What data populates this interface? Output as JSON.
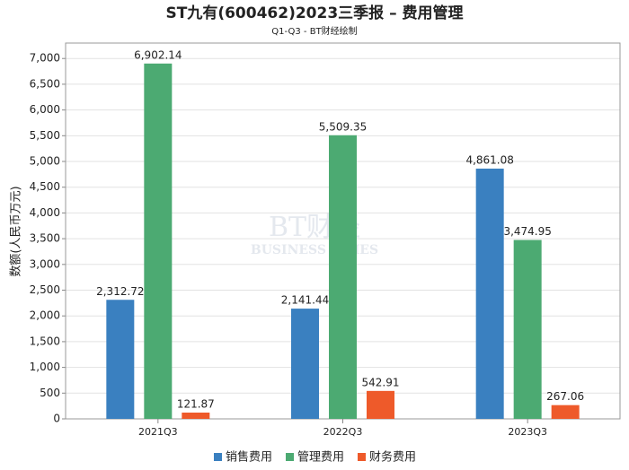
{
  "chart_data": {
    "type": "bar",
    "title": "ST九有(600462)2023三季报 – 费用管理",
    "subtitle": "Q1-Q3 - BT财经绘制",
    "y_label": "数额(人民币万元)",
    "watermark": [
      "BT财经",
      "BUSINESS TIMES"
    ],
    "categories": [
      "2021Q3",
      "2022Q3",
      "2023Q3"
    ],
    "series": [
      {
        "name": "销售费用",
        "color": "#3a80c0",
        "values": [
          2312.72,
          2141.44,
          4861.08
        ],
        "value_labels": [
          "2,312.72",
          "2,141.44",
          "4,861.08"
        ]
      },
      {
        "name": "管理费用",
        "color": "#4caa72",
        "values": [
          6902.14,
          5509.35,
          3474.95
        ],
        "value_labels": [
          "6,902.14",
          "5,509.35",
          "3,474.95"
        ]
      },
      {
        "name": "财务费用",
        "color": "#ee5a2a",
        "values": [
          121.87,
          542.91,
          267.06
        ],
        "value_labels": [
          "121.87",
          "542.91",
          "267.06"
        ]
      }
    ],
    "ylim": [
      0,
      7300
    ],
    "yticks": [
      0,
      500,
      {
        "value": 1000,
        "label": "1,000"
      },
      {
        "value": 1500,
        "label": "1,500"
      },
      {
        "value": 2000,
        "label": "2,000"
      },
      {
        "value": 2500,
        "label": "2,500"
      },
      {
        "value": 3000,
        "label": "3,000"
      },
      {
        "value": 3500,
        "label": "3,500"
      },
      {
        "value": 4000,
        "label": "4,000"
      },
      {
        "value": 4500,
        "label": "4,500"
      },
      {
        "value": 5000,
        "label": "5,000"
      },
      {
        "value": 5500,
        "label": "5,500"
      },
      {
        "value": 6000,
        "label": "6,000"
      },
      {
        "value": 6500,
        "label": "6,500"
      },
      {
        "value": 7000,
        "label": "7,000"
      }
    ],
    "grid": true,
    "legend": "bottom"
  }
}
